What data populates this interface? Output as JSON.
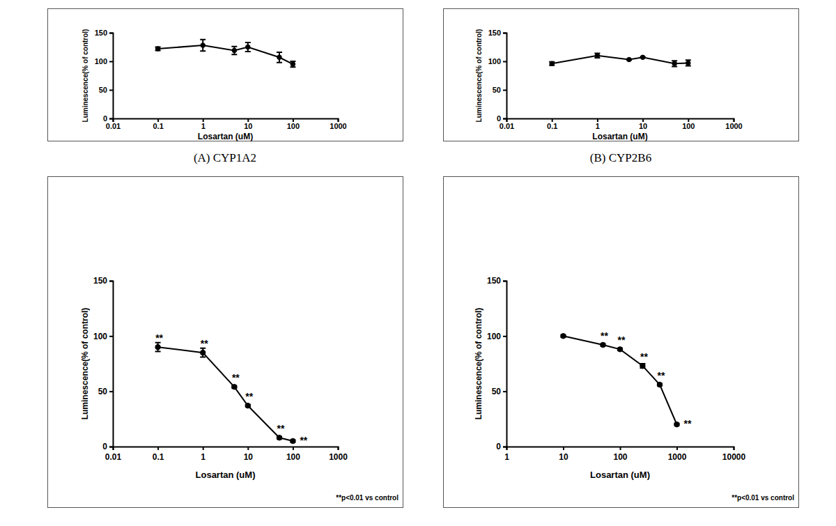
{
  "chart_data": [
    {
      "type": "line",
      "caption": "(A) CYP1A2",
      "x_label": "Losartan (uM)",
      "y_label": "Luminescence(% of control)",
      "x": [
        0.1,
        1,
        5,
        10,
        50,
        100
      ],
      "values": [
        122,
        128,
        119,
        125,
        107,
        95
      ],
      "errors": [
        3,
        10,
        7,
        8,
        9,
        5
      ],
      "xlim": [
        0.01,
        1000
      ],
      "xticks": [
        0.01,
        0.1,
        1,
        10,
        100,
        1000
      ],
      "ylim": [
        0,
        150
      ],
      "yticks": [
        0,
        50,
        100,
        150
      ],
      "log": "x",
      "marker": "circle",
      "color": "#000000"
    },
    {
      "type": "line",
      "caption": "(B) CYP2B6",
      "x_label": "Losartan (uM)",
      "y_label": "Luminescence(% of control)",
      "x": [
        0.1,
        1,
        5,
        10,
        50,
        100
      ],
      "values": [
        96,
        110,
        103,
        107,
        96,
        97
      ],
      "errors": [
        3,
        4,
        1,
        1,
        5,
        5
      ],
      "xlim": [
        0.01,
        1000
      ],
      "xticks": [
        0.01,
        0.1,
        1,
        10,
        100,
        1000
      ],
      "ylim": [
        0,
        150
      ],
      "yticks": [
        0,
        50,
        100,
        150
      ],
      "log": "x",
      "marker": "circle",
      "color": "#000000"
    },
    {
      "type": "line",
      "x_label": "Losartan (uM)",
      "y_label": "Luminescence(% of control)",
      "note": "**p<0.01 vs control",
      "x": [
        0.1,
        1,
        5,
        10,
        50,
        100
      ],
      "values": [
        90,
        85,
        54,
        37,
        8,
        5
      ],
      "errors": [
        4,
        4,
        1,
        1,
        1,
        1
      ],
      "point_annotations": [
        "**",
        "**",
        "**",
        "**",
        "**",
        "**"
      ],
      "xlim": [
        0.01,
        1000
      ],
      "xticks": [
        0.01,
        0.1,
        1,
        10,
        100,
        1000
      ],
      "ylim": [
        0,
        150
      ],
      "yticks": [
        0,
        50,
        100,
        150
      ],
      "log": "x",
      "marker": "circle",
      "color": "#000000"
    },
    {
      "type": "line",
      "x_label": "Losartan (uM)",
      "y_label": "Luminescence(% of control)",
      "note": "**p<0.01 vs control",
      "x": [
        10,
        50,
        100,
        250,
        500,
        1000
      ],
      "values": [
        100,
        92,
        88,
        73,
        56,
        20
      ],
      "errors": [
        1,
        1,
        1,
        2,
        1,
        1
      ],
      "point_annotations": [
        null,
        "**",
        "**",
        "**",
        "**",
        "**"
      ],
      "xlim": [
        1,
        10000
      ],
      "xticks": [
        1,
        10,
        100,
        1000,
        10000
      ],
      "ylim": [
        0,
        150
      ],
      "yticks": [
        0,
        50,
        100,
        150
      ],
      "log": "x",
      "marker": "circle",
      "color": "#000000"
    }
  ]
}
